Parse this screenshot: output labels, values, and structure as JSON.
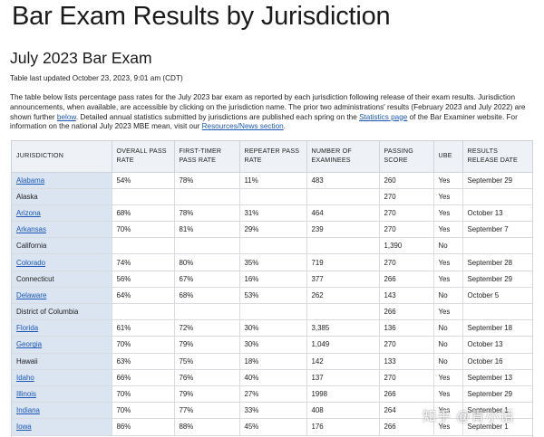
{
  "page": {
    "title": "Bar Exam Results by Jurisdiction",
    "section_title": "July 2023 Bar Exam",
    "last_updated": "Table last updated October 23, 2023, 9:01 am (CDT)"
  },
  "intro": {
    "p1": "The table below lists percentage pass rates for the July 2023 bar exam as reported by each jurisdiction following release of their exam results. Jurisdiction announcements, when available, are accessible by clicking on the jurisdiction name. The prior two administrations' results (February 2023 and July 2022) are shown further ",
    "below_link": "below",
    "p2": ". Detailed annual statistics submitted by jurisdictions are published each spring on the ",
    "statistics_link": "Statistics page",
    "p3": " of the Bar Examiner website. For information on the national July 2023 MBE mean, visit our ",
    "resources_link": "Resources/News section",
    "p4": "."
  },
  "table": {
    "headers": [
      "Jurisdiction",
      "Overall Pass Rate",
      "First-Timer Pass Rate",
      "Repeater Pass Rate",
      "Number of Examinees",
      "Passing Score",
      "UBE",
      "Results Release Date"
    ],
    "rows": [
      {
        "jurisdiction": "Alabama",
        "link": true,
        "overall": "54%",
        "first": "78%",
        "repeater": "11%",
        "examinees": "483",
        "score": "260",
        "ube": "Yes",
        "release": "September 29"
      },
      {
        "jurisdiction": "Alaska",
        "link": false,
        "overall": "",
        "first": "",
        "repeater": "",
        "examinees": "",
        "score": "270",
        "ube": "Yes",
        "release": ""
      },
      {
        "jurisdiction": "Arizona",
        "link": true,
        "overall": "68%",
        "first": "78%",
        "repeater": "31%",
        "examinees": "464",
        "score": "270",
        "ube": "Yes",
        "release": "October 13"
      },
      {
        "jurisdiction": "Arkansas",
        "link": true,
        "overall": "70%",
        "first": "81%",
        "repeater": "29%",
        "examinees": "239",
        "score": "270",
        "ube": "Yes",
        "release": "September 7"
      },
      {
        "jurisdiction": "California",
        "link": false,
        "overall": "",
        "first": "",
        "repeater": "",
        "examinees": "",
        "score": "1,390",
        "ube": "No",
        "release": ""
      },
      {
        "jurisdiction": "Colorado",
        "link": true,
        "overall": "74%",
        "first": "80%",
        "repeater": "35%",
        "examinees": "719",
        "score": "270",
        "ube": "Yes",
        "release": "September 28"
      },
      {
        "jurisdiction": "Connecticut",
        "link": false,
        "overall": "56%",
        "first": "67%",
        "repeater": "16%",
        "examinees": "377",
        "score": "266",
        "ube": "Yes",
        "release": "September 29"
      },
      {
        "jurisdiction": "Delaware",
        "link": true,
        "overall": "64%",
        "first": "68%",
        "repeater": "53%",
        "examinees": "262",
        "score": "143",
        "ube": "No",
        "release": "October 5"
      },
      {
        "jurisdiction": "District of Columbia",
        "link": false,
        "overall": "",
        "first": "",
        "repeater": "",
        "examinees": "",
        "score": "266",
        "ube": "Yes",
        "release": ""
      },
      {
        "jurisdiction": "Florida",
        "link": true,
        "overall": "61%",
        "first": "72%",
        "repeater": "30%",
        "examinees": "3,385",
        "score": "136",
        "ube": "No",
        "release": "September 18"
      },
      {
        "jurisdiction": "Georgia",
        "link": true,
        "overall": "70%",
        "first": "79%",
        "repeater": "30%",
        "examinees": "1,049",
        "score": "270",
        "ube": "No",
        "release": "October 13"
      },
      {
        "jurisdiction": "Hawaii",
        "link": false,
        "overall": "63%",
        "first": "75%",
        "repeater": "18%",
        "examinees": "142",
        "score": "133",
        "ube": "No",
        "release": "October 16"
      },
      {
        "jurisdiction": "Idaho",
        "link": true,
        "overall": "66%",
        "first": "76%",
        "repeater": "40%",
        "examinees": "137",
        "score": "270",
        "ube": "Yes",
        "release": "September 13"
      },
      {
        "jurisdiction": "Illinois",
        "link": true,
        "overall": "70%",
        "first": "79%",
        "repeater": "27%",
        "examinees": "1998",
        "score": "266",
        "ube": "Yes",
        "release": "September 29"
      },
      {
        "jurisdiction": "Indiana",
        "link": true,
        "overall": "70%",
        "first": "77%",
        "repeater": "33%",
        "examinees": "408",
        "score": "264",
        "ube": "Yes",
        "release": "September 1"
      },
      {
        "jurisdiction": "Iowa",
        "link": true,
        "overall": "86%",
        "first": "88%",
        "repeater": "45%",
        "examinees": "176",
        "score": "266",
        "ube": "Yes",
        "release": "September 1"
      }
    ]
  },
  "watermark": "知乎 @青小话"
}
